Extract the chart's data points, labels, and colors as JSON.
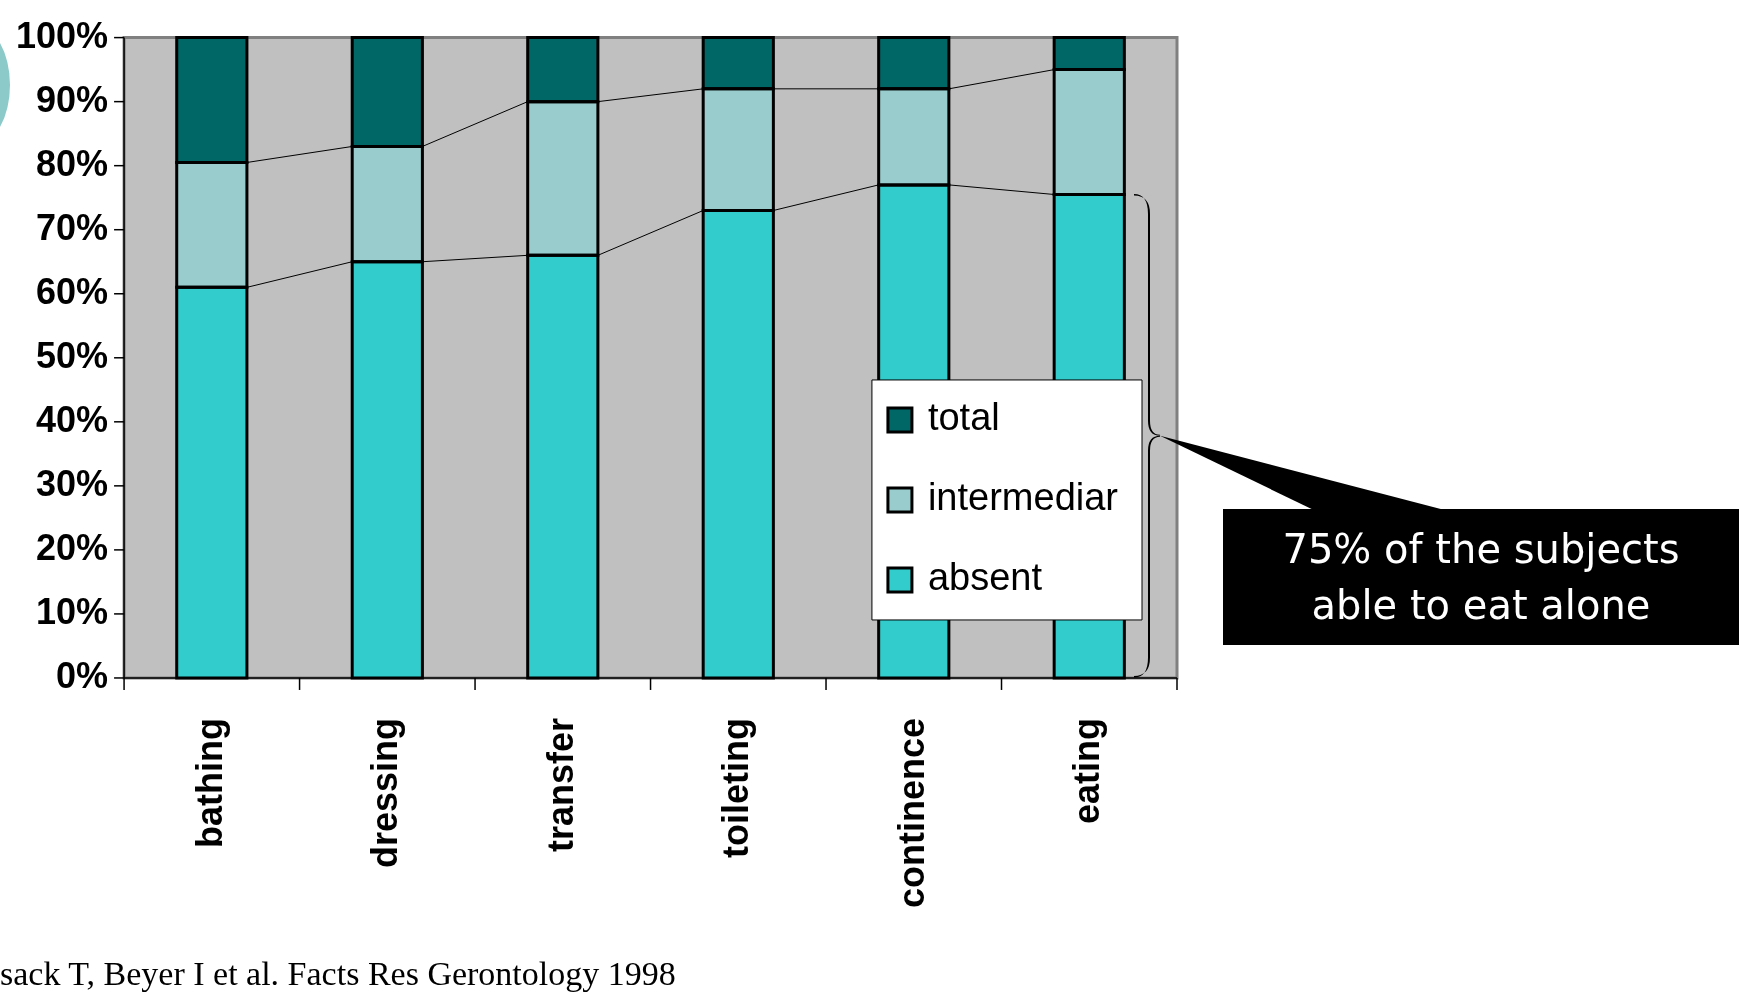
{
  "chart_data": {
    "type": "bar",
    "stacked": true,
    "categories": [
      "bathing",
      "dressing",
      "transfer",
      "toileting",
      "continence",
      "eating"
    ],
    "series": [
      {
        "name": "absent",
        "color": "#33cccc",
        "values": [
          61,
          65,
          66,
          73,
          77,
          75.5
        ]
      },
      {
        "name": "intermediar",
        "color": "#99cccc",
        "values": [
          19.5,
          18,
          24,
          19,
          15,
          19.5
        ]
      },
      {
        "name": "total",
        "color": "#006666",
        "values": [
          19.5,
          17,
          10,
          8,
          8,
          5
        ]
      }
    ],
    "ylim": [
      0,
      100
    ],
    "yticks": [
      {
        "value": 0,
        "label": "0%"
      },
      {
        "value": 10,
        "label": "10%"
      },
      {
        "value": 20,
        "label": "20%"
      },
      {
        "value": 30,
        "label": "30%"
      },
      {
        "value": 40,
        "label": "40%"
      },
      {
        "value": 50,
        "label": "50%"
      },
      {
        "value": 60,
        "label": "60%"
      },
      {
        "value": 70,
        "label": "70%"
      },
      {
        "value": 80,
        "label": "80%"
      },
      {
        "value": 90,
        "label": "90%"
      },
      {
        "value": 100,
        "label": "100%"
      }
    ],
    "grid": false,
    "legend": "bottom right",
    "annotations": [
      "75% of the subjects able to eat alone",
      "sack T, Beyer I et al. Facts Res Gerontology 1998"
    ]
  }
}
